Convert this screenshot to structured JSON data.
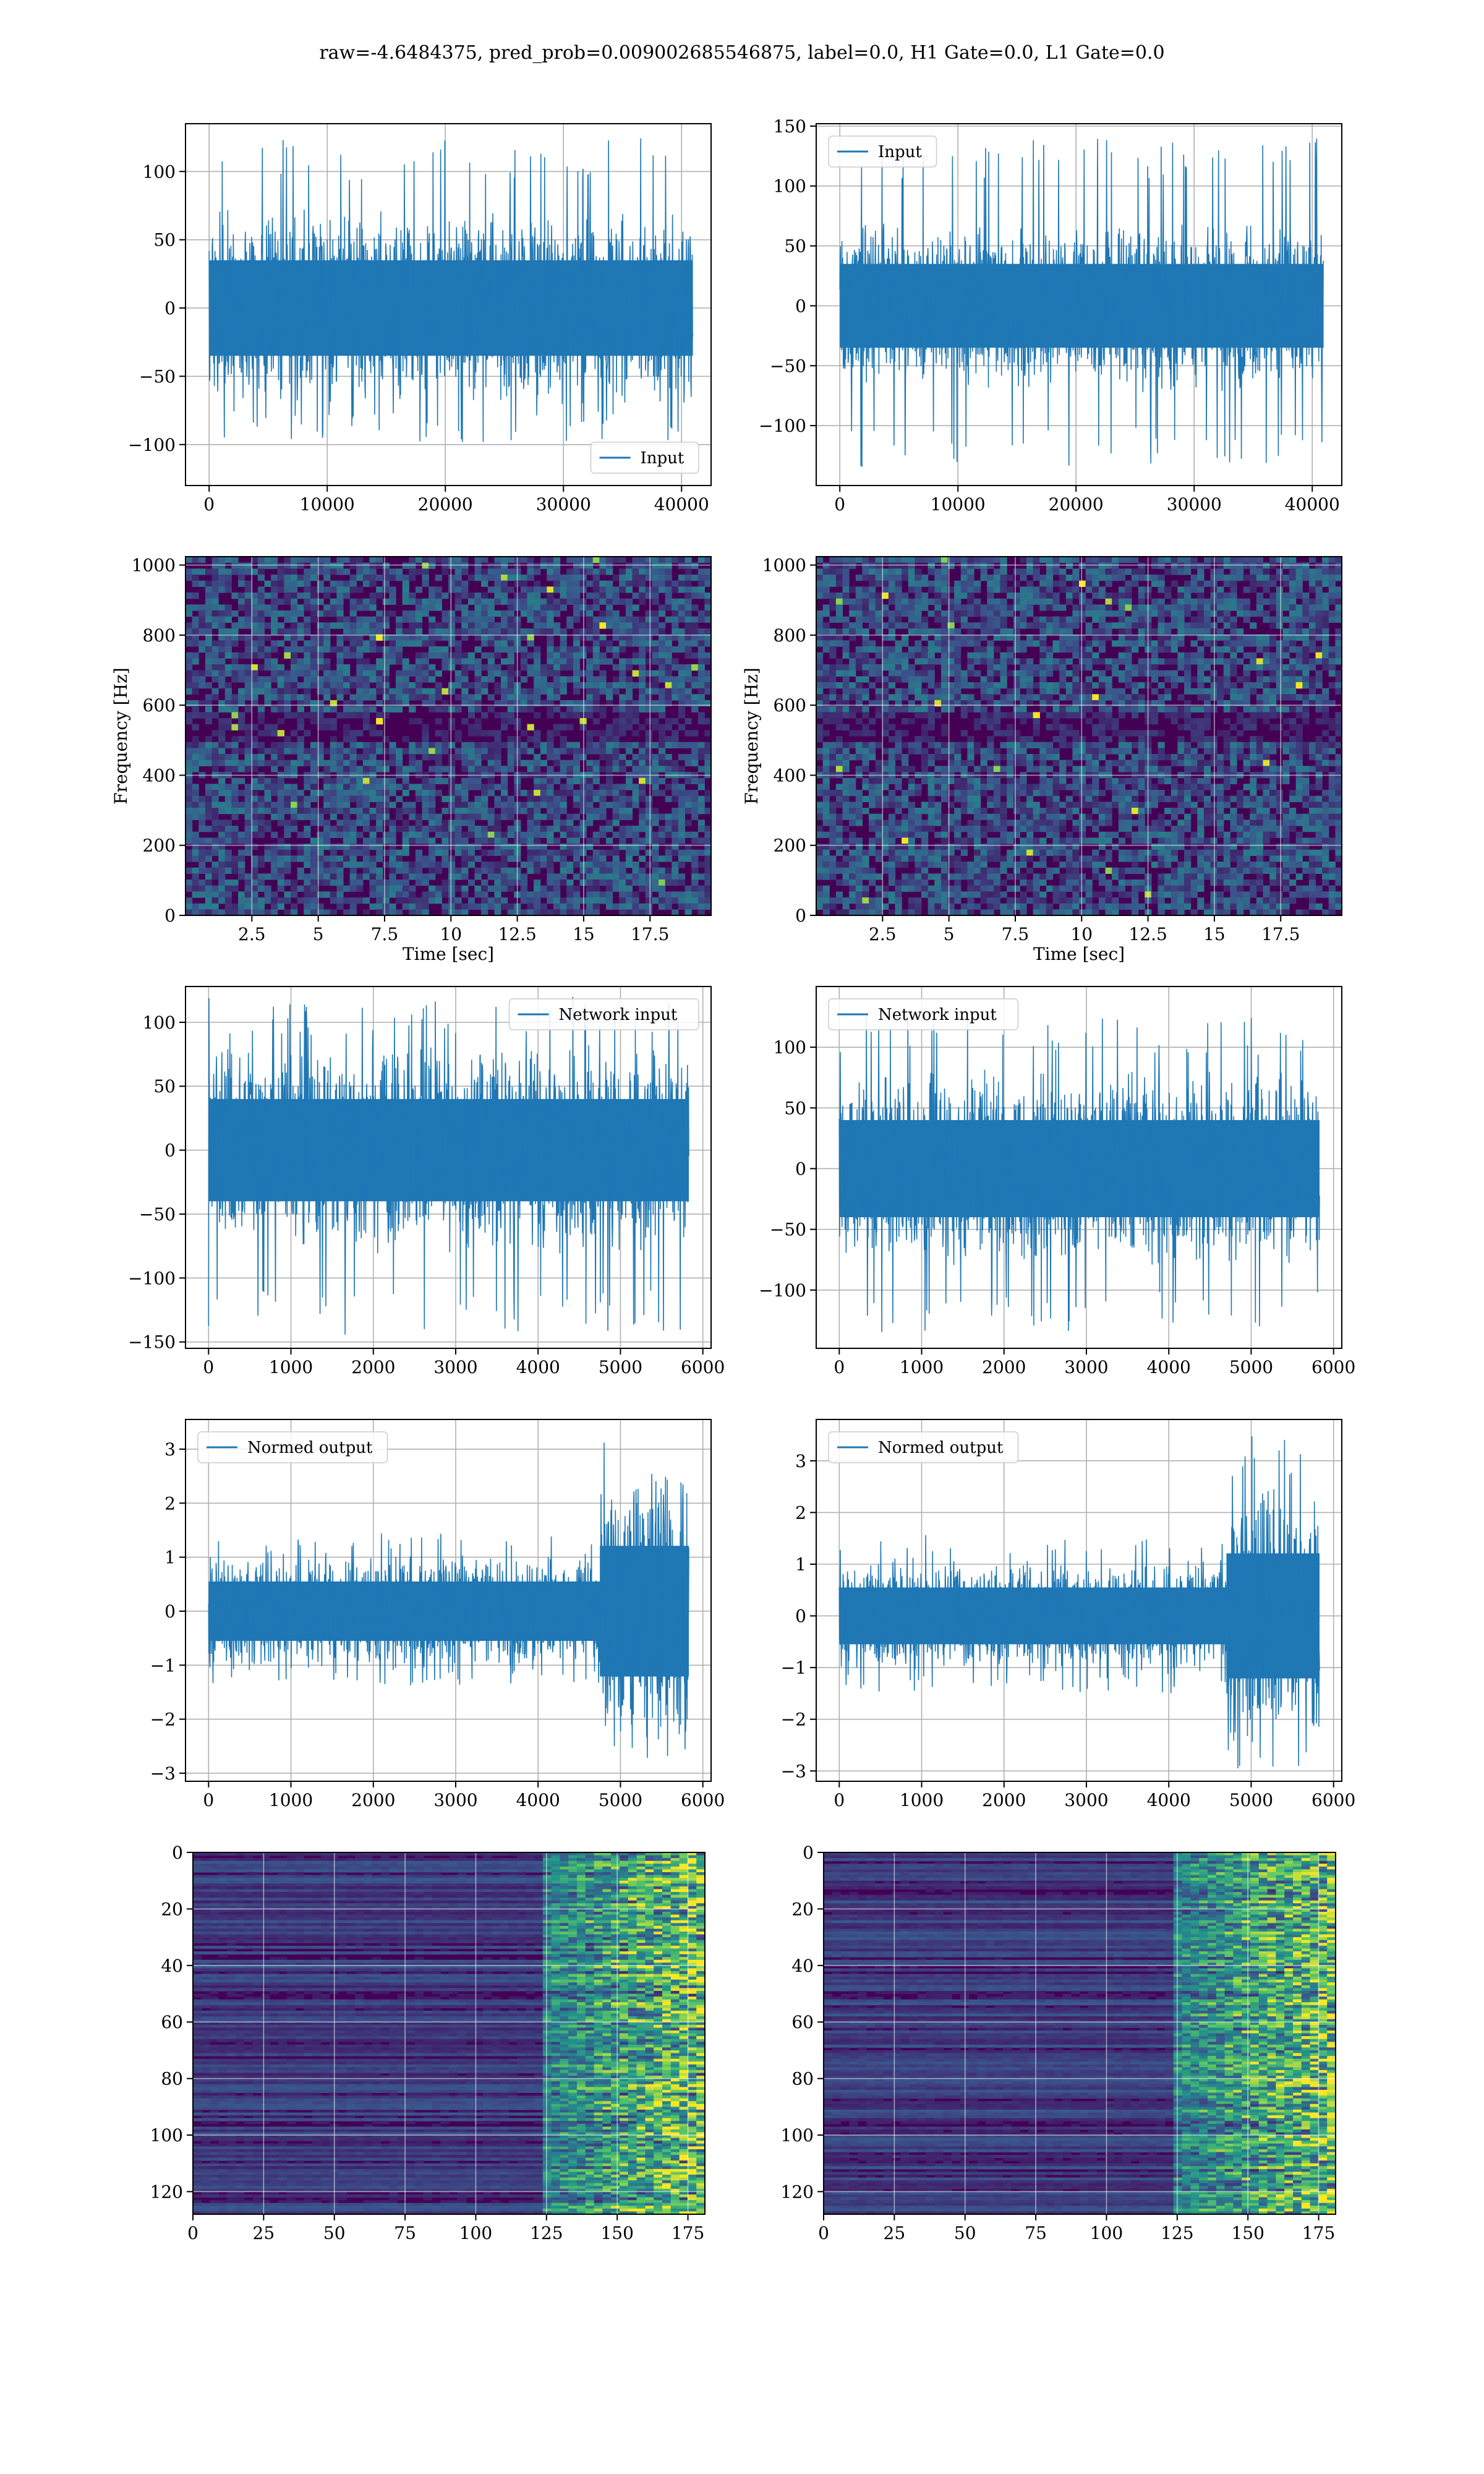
{
  "figure": {
    "title": "raw=-4.6484375, pred_prob=0.009002685546875, label=0.0, H1 Gate=0.0, L1 Gate=0.0"
  },
  "colors": {
    "line": "#1f77b4",
    "grid": "#b0b0b0",
    "axes": "#000000",
    "heat_low": "#440154",
    "heat_mid": "#21918c",
    "heat_high": "#fde725"
  },
  "chart_data": [
    {
      "id": "input-h1",
      "type": "line",
      "xlim": [
        -2000,
        42500
      ],
      "ylim": [
        -130,
        135
      ],
      "xticks": [
        0,
        10000,
        20000,
        30000,
        40000
      ],
      "yticks": [
        -100,
        -50,
        0,
        50,
        100
      ],
      "xlabel": "",
      "ylabel": "",
      "legend": "Input",
      "legend_loc": "lower-right",
      "series": [
        {
          "name": "Input",
          "x_range": [
            0,
            40960
          ],
          "envelope": [
            -100,
            125
          ],
          "core": [
            -35,
            35
          ]
        }
      ]
    },
    {
      "id": "input-l1",
      "type": "line",
      "xlim": [
        -2000,
        42500
      ],
      "ylim": [
        -150,
        152
      ],
      "xticks": [
        0,
        10000,
        20000,
        30000,
        40000
      ],
      "yticks": [
        -100,
        -50,
        0,
        50,
        100,
        150
      ],
      "xlabel": "",
      "ylabel": "",
      "legend": "Input",
      "legend_loc": "upper-left",
      "series": [
        {
          "name": "Input",
          "x_range": [
            0,
            40960
          ],
          "envelope": [
            -135,
            140
          ],
          "core": [
            -35,
            35
          ]
        }
      ]
    },
    {
      "id": "spectrogram-h1",
      "type": "heatmap",
      "xlim": [
        0,
        19.8
      ],
      "ylim": [
        0,
        1024
      ],
      "xticks": [
        2.5,
        5.0,
        7.5,
        10.0,
        12.5,
        15.0,
        17.5
      ],
      "yticks": [
        0,
        200,
        400,
        600,
        800,
        1000
      ],
      "xlabel": "Time [sec]",
      "ylabel": "Frequency [Hz]"
    },
    {
      "id": "spectrogram-l1",
      "type": "heatmap",
      "xlim": [
        0,
        19.8
      ],
      "ylim": [
        0,
        1024
      ],
      "xticks": [
        2.5,
        5.0,
        7.5,
        10.0,
        12.5,
        15.0,
        17.5
      ],
      "yticks": [
        0,
        200,
        400,
        600,
        800,
        1000
      ],
      "xlabel": "Time [sec]",
      "ylabel": "Frequency [Hz]"
    },
    {
      "id": "network-input-h1",
      "type": "line",
      "xlim": [
        -280,
        6100
      ],
      "ylim": [
        -155,
        128
      ],
      "xticks": [
        0,
        1000,
        2000,
        3000,
        4000,
        5000,
        6000
      ],
      "yticks": [
        -150,
        -100,
        -50,
        0,
        50,
        100
      ],
      "xlabel": "",
      "ylabel": "",
      "legend": "Network input",
      "legend_loc": "upper-right",
      "series": [
        {
          "name": "Network input",
          "x_range": [
            0,
            5830
          ],
          "envelope": [
            -145,
            120
          ],
          "core": [
            -40,
            40
          ]
        }
      ]
    },
    {
      "id": "network-input-l1",
      "type": "line",
      "xlim": [
        -280,
        6100
      ],
      "ylim": [
        -148,
        150
      ],
      "xticks": [
        0,
        1000,
        2000,
        3000,
        4000,
        5000,
        6000
      ],
      "yticks": [
        -100,
        -50,
        0,
        50,
        100
      ],
      "xlabel": "",
      "ylabel": "",
      "legend": "Network input",
      "legend_loc": "upper-left",
      "series": [
        {
          "name": "Network input",
          "x_range": [
            0,
            5830
          ],
          "envelope": [
            -135,
            125
          ],
          "core": [
            -40,
            40
          ]
        }
      ]
    },
    {
      "id": "normed-output-h1",
      "type": "line",
      "xlim": [
        -280,
        6100
      ],
      "ylim": [
        -3.15,
        3.55
      ],
      "xticks": [
        0,
        1000,
        2000,
        3000,
        4000,
        5000,
        6000
      ],
      "yticks": [
        -3,
        -2,
        -1,
        0,
        1,
        2,
        3
      ],
      "xlabel": "",
      "ylabel": "",
      "legend": "Normed output",
      "legend_loc": "upper-left",
      "series": [
        {
          "name": "Normed output",
          "x_range": [
            0,
            5830
          ],
          "burst_start": 4750,
          "envelope": [
            -2.8,
            3.2
          ],
          "core": [
            -0.55,
            0.55
          ]
        }
      ]
    },
    {
      "id": "normed-output-l1",
      "type": "line",
      "xlim": [
        -280,
        6100
      ],
      "ylim": [
        -3.2,
        3.8
      ],
      "xticks": [
        0,
        1000,
        2000,
        3000,
        4000,
        5000,
        6000
      ],
      "yticks": [
        -3,
        -2,
        -1,
        0,
        1,
        2,
        3
      ],
      "xlabel": "",
      "ylabel": "",
      "legend": "Normed output",
      "legend_loc": "upper-left",
      "series": [
        {
          "name": "Normed output",
          "x_range": [
            0,
            5830
          ],
          "burst_start": 4700,
          "envelope": [
            -3.0,
            3.5
          ],
          "core": [
            -0.55,
            0.55
          ]
        }
      ]
    },
    {
      "id": "feature-map-h1",
      "type": "heatmap",
      "xlim": [
        0,
        181
      ],
      "ylim": [
        128,
        0
      ],
      "xticks": [
        0,
        25,
        50,
        75,
        100,
        125,
        150,
        175
      ],
      "yticks": [
        0,
        20,
        40,
        60,
        80,
        100,
        120
      ],
      "xlabel": "",
      "ylabel": ""
    },
    {
      "id": "feature-map-l1",
      "type": "heatmap",
      "xlim": [
        0,
        181
      ],
      "ylim": [
        128,
        0
      ],
      "xticks": [
        0,
        25,
        50,
        75,
        100,
        125,
        150,
        175
      ],
      "yticks": [
        0,
        20,
        40,
        60,
        80,
        100,
        120
      ],
      "xlabel": "",
      "ylabel": ""
    }
  ]
}
